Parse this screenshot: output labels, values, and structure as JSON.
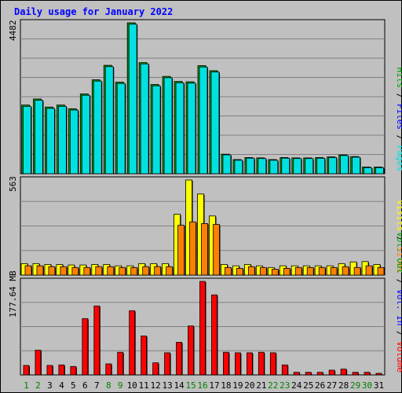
{
  "title": "Daily usage for January 2022",
  "colors": {
    "background": "#c0c0c0",
    "plot_background": "#c0c0c0",
    "grid": "#808080",
    "border": "#000000",
    "title": "#0000ff",
    "hits": "#00a000",
    "files": "#0000ff",
    "pages": "#00e0e0",
    "visits": "#ffff00",
    "sites": "#ff8000",
    "vol_out": "#00a000",
    "vol_in": "#0000ff",
    "volume": "#ff0000",
    "weekend_day": "#008000",
    "weekday_day": "#000000"
  },
  "right_label": {
    "top": [
      {
        "text": "Hits",
        "color_key": "hits"
      },
      {
        "text": " / ",
        "color_key": "border"
      },
      {
        "text": "Files",
        "color_key": "files"
      },
      {
        "text": " / ",
        "color_key": "border"
      },
      {
        "text": "Pages",
        "color_key": "pages"
      }
    ],
    "middle": [
      {
        "text": "Visits",
        "color_key": "visits"
      },
      {
        "text": " / ",
        "color_key": "border"
      },
      {
        "text": "Sites",
        "color_key": "sites"
      }
    ],
    "bottom": [
      {
        "text": "Vol. Out",
        "color_key": "vol_out"
      },
      {
        "text": " / ",
        "color_key": "border"
      },
      {
        "text": "Vol. In",
        "color_key": "vol_in"
      },
      {
        "text": " / ",
        "color_key": "border"
      },
      {
        "text": "Volume",
        "color_key": "volume"
      }
    ]
  },
  "chart_data": [
    {
      "type": "bar",
      "panel": "hits_files",
      "ylabel": "4482",
      "ylim": [
        0,
        4482
      ],
      "grid": true,
      "x": [
        1,
        2,
        3,
        4,
        5,
        6,
        7,
        8,
        9,
        10,
        11,
        12,
        13,
        14,
        15,
        16,
        17,
        18,
        19,
        20,
        21,
        22,
        23,
        24,
        25,
        26,
        27,
        28,
        29,
        30,
        31
      ],
      "series": [
        {
          "name": "Hits",
          "color_key": "hits",
          "values": [
            2040,
            2220,
            1980,
            2040,
            1930,
            2370,
            2790,
            3220,
            2720,
            4482,
            3300,
            2650,
            2890,
            2740,
            2730,
            3210,
            3060,
            580,
            420,
            480,
            470,
            420,
            480,
            470,
            470,
            480,
            500,
            560,
            510,
            200,
            200
          ]
        },
        {
          "name": "Files",
          "color_key": "pages",
          "values": [
            2000,
            2180,
            1940,
            2000,
            1890,
            2330,
            2750,
            3180,
            2680,
            4440,
            3260,
            2610,
            2850,
            2700,
            2690,
            3170,
            3020,
            560,
            400,
            460,
            450,
            400,
            460,
            450,
            450,
            460,
            480,
            540,
            490,
            180,
            180
          ]
        }
      ]
    },
    {
      "type": "bar",
      "panel": "visits_sites",
      "ylabel": "563",
      "ylim": [
        0,
        563
      ],
      "grid": true,
      "x": [
        1,
        2,
        3,
        4,
        5,
        6,
        7,
        8,
        9,
        10,
        11,
        12,
        13,
        14,
        15,
        16,
        17,
        18,
        19,
        20,
        21,
        22,
        23,
        24,
        25,
        26,
        27,
        28,
        29,
        30,
        31
      ],
      "series": [
        {
          "name": "Visits",
          "color_key": "visits",
          "values": [
            68,
            68,
            63,
            63,
            60,
            60,
            63,
            63,
            55,
            55,
            68,
            68,
            68,
            360,
            563,
            480,
            350,
            63,
            55,
            63,
            55,
            45,
            55,
            55,
            55,
            55,
            55,
            68,
            78,
            80,
            63
          ]
        },
        {
          "name": "Sites",
          "color_key": "sites",
          "values": [
            55,
            55,
            50,
            50,
            45,
            45,
            50,
            50,
            45,
            45,
            50,
            50,
            50,
            295,
            315,
            305,
            300,
            45,
            40,
            50,
            45,
            35,
            40,
            45,
            45,
            45,
            45,
            50,
            45,
            55,
            45
          ]
        }
      ]
    },
    {
      "type": "bar",
      "panel": "volume",
      "ylabel": "177.64 MB",
      "ylim": [
        0,
        177.64
      ],
      "grid": true,
      "x": [
        1,
        2,
        3,
        4,
        5,
        6,
        7,
        8,
        9,
        10,
        11,
        12,
        13,
        14,
        15,
        16,
        17,
        18,
        19,
        20,
        21,
        22,
        23,
        24,
        25,
        26,
        27,
        28,
        29,
        30,
        31
      ],
      "series": [
        {
          "name": "Volume",
          "color_key": "volume",
          "values": [
            18,
            47,
            18,
            19,
            16,
            107,
            131,
            21,
            43,
            122,
            74,
            23,
            42,
            62,
            93,
            177.64,
            152,
            43,
            42,
            42,
            43,
            42,
            19,
            5,
            5,
            5,
            9,
            11,
            5,
            5,
            3
          ]
        }
      ]
    }
  ],
  "x_tick_labels": [
    "1",
    "2",
    "3",
    "4",
    "5",
    "6",
    "7",
    "8",
    "9",
    "10",
    "11",
    "12",
    "13",
    "14",
    "15",
    "16",
    "17",
    "18",
    "19",
    "20",
    "21",
    "22",
    "23",
    "24",
    "25",
    "26",
    "27",
    "28",
    "29",
    "30",
    "31"
  ],
  "weekend_days": [
    1,
    2,
    8,
    9,
    15,
    16,
    22,
    23,
    29,
    30
  ]
}
